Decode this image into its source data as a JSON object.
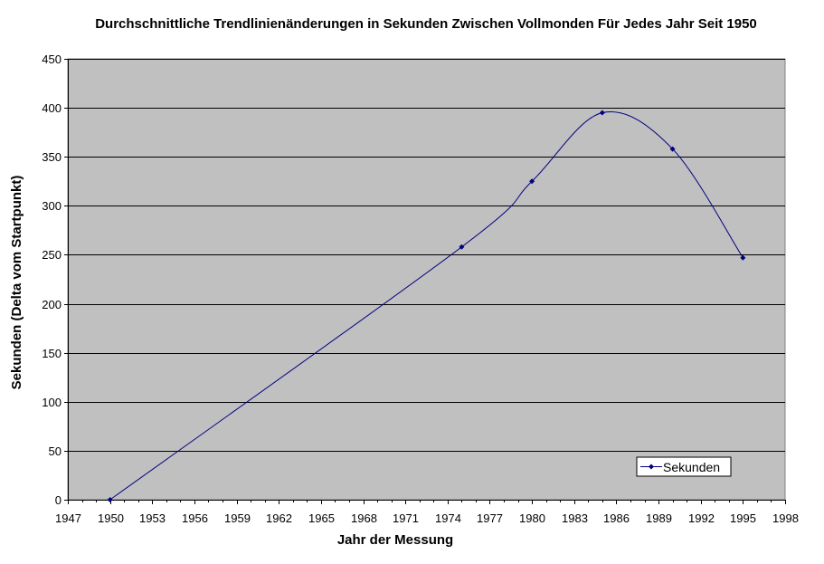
{
  "chart_data": {
    "type": "line",
    "title": "Durchschnittliche Trendlinienänderungen in Sekunden Zwischen Vollmonden Für Jedes Jahr Seit 1950",
    "xlabel": "Jahr der Messung",
    "ylabel": "Sekunden (Delta vom Startpunkt)",
    "xlim": [
      1947,
      1998
    ],
    "ylim": [
      0,
      450
    ],
    "x_ticks": [
      "1947",
      "1950",
      "1953",
      "1956",
      "1959",
      "1962",
      "1965",
      "1968",
      "1971",
      "1974",
      "1977",
      "1980",
      "1983",
      "1986",
      "1989",
      "1992",
      "1995",
      "1998"
    ],
    "y_ticks": [
      "0",
      "50",
      "100",
      "150",
      "200",
      "250",
      "300",
      "350",
      "400",
      "450"
    ],
    "grid": "horizontal",
    "legend_position": "bottom-right",
    "colors": {
      "plot_background": "#c0c0c0",
      "series": "#000080",
      "grid": "#000000"
    },
    "series": [
      {
        "name": "Sekunden",
        "x": [
          1950,
          1975,
          1980,
          1985,
          1990,
          1995
        ],
        "y": [
          0,
          258,
          325,
          395,
          358,
          247
        ]
      }
    ]
  }
}
